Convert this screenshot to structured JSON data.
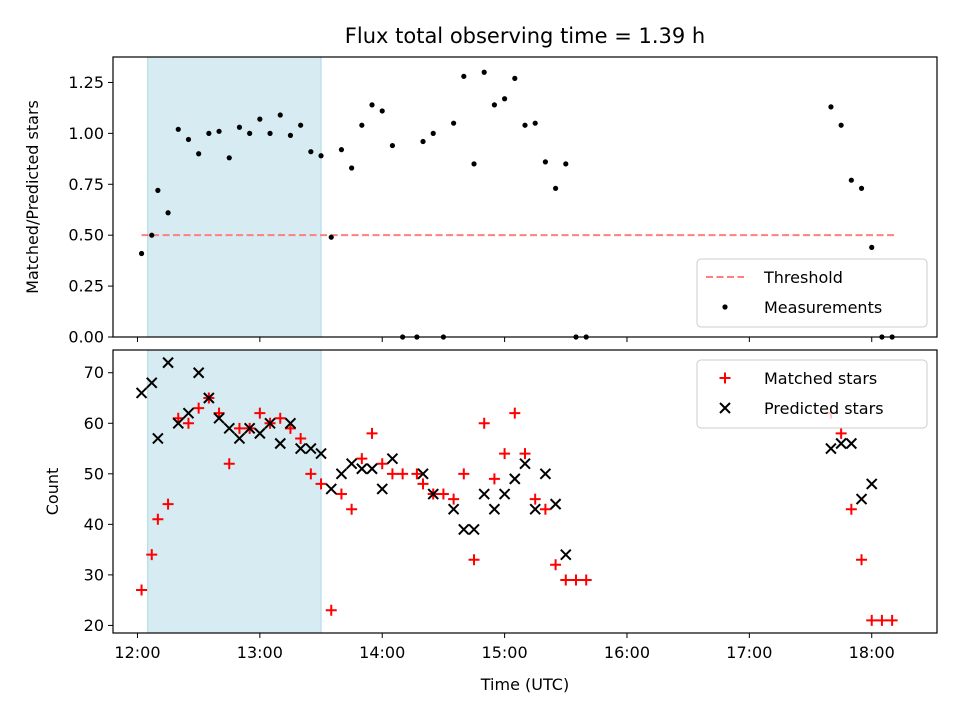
{
  "chart_data": [
    {
      "type": "scatter",
      "title": "Flux total observing time = 1.39 h",
      "xlabel": "",
      "ylabel": "Matched/Predicted stars",
      "ylim": [
        0,
        1.375
      ],
      "yticks": [
        "0.00",
        "0.25",
        "0.50",
        "0.75",
        "1.00",
        "1.25"
      ],
      "ytick_values": [
        0,
        0.25,
        0.5,
        0.75,
        1.0,
        1.25
      ],
      "xlim": [
        "11:48",
        "18:32"
      ],
      "xticks": [
        "12:00",
        "13:00",
        "14:00",
        "15:00",
        "16:00",
        "17:00",
        "18:00"
      ],
      "shaded_interval": [
        "12:05",
        "13:30"
      ],
      "threshold": {
        "name": "Threshold",
        "value": 0.5,
        "x": [
          "12:02",
          "18:12"
        ],
        "color": "#ff7f7f"
      },
      "legend": {
        "placement": "lower right",
        "entries": [
          "Threshold",
          "Measurements"
        ]
      },
      "series": [
        {
          "name": "Measurements",
          "color": "#000000",
          "points": [
            [
              "12:02",
              0.41
            ],
            [
              "12:07",
              0.5
            ],
            [
              "12:10",
              0.72
            ],
            [
              "12:15",
              0.61
            ],
            [
              "12:20",
              1.02
            ],
            [
              "12:25",
              0.97
            ],
            [
              "12:30",
              0.9
            ],
            [
              "12:35",
              1.0
            ],
            [
              "12:40",
              1.01
            ],
            [
              "12:45",
              0.88
            ],
            [
              "12:50",
              1.03
            ],
            [
              "12:55",
              1.0
            ],
            [
              "13:00",
              1.07
            ],
            [
              "13:05",
              1.0
            ],
            [
              "13:10",
              1.09
            ],
            [
              "13:15",
              0.99
            ],
            [
              "13:20",
              1.04
            ],
            [
              "13:25",
              0.91
            ],
            [
              "13:30",
              0.89
            ],
            [
              "13:35",
              0.49
            ],
            [
              "13:40",
              0.92
            ],
            [
              "13:45",
              0.83
            ],
            [
              "13:50",
              1.04
            ],
            [
              "13:55",
              1.14
            ],
            [
              "14:00",
              1.11
            ],
            [
              "14:05",
              0.94
            ],
            [
              "14:10",
              0.0
            ],
            [
              "14:17",
              0.0
            ],
            [
              "14:20",
              0.96
            ],
            [
              "14:25",
              1.0
            ],
            [
              "14:30",
              0.0
            ],
            [
              "14:35",
              1.05
            ],
            [
              "14:40",
              1.28
            ],
            [
              "14:45",
              0.85
            ],
            [
              "14:50",
              1.3
            ],
            [
              "14:55",
              1.14
            ],
            [
              "15:00",
              1.17
            ],
            [
              "15:05",
              1.27
            ],
            [
              "15:10",
              1.04
            ],
            [
              "15:15",
              1.05
            ],
            [
              "15:20",
              0.86
            ],
            [
              "15:25",
              0.73
            ],
            [
              "15:30",
              0.85
            ],
            [
              "15:35",
              0.0
            ],
            [
              "15:40",
              0.0
            ],
            [
              "17:40",
              1.13
            ],
            [
              "17:45",
              1.04
            ],
            [
              "17:50",
              0.77
            ],
            [
              "17:55",
              0.73
            ],
            [
              "18:00",
              0.44
            ],
            [
              "18:05",
              0.0
            ],
            [
              "18:10",
              0.0
            ]
          ]
        }
      ]
    },
    {
      "type": "scatter",
      "title": "",
      "xlabel": "Time (UTC)",
      "ylabel": "Count",
      "ylim": [
        18.5,
        74.5
      ],
      "yticks": [
        "20",
        "30",
        "40",
        "50",
        "60",
        "70"
      ],
      "ytick_values": [
        20,
        30,
        40,
        50,
        60,
        70
      ],
      "xlim": [
        "11:48",
        "18:32"
      ],
      "xticks": [
        "12:00",
        "13:00",
        "14:00",
        "15:00",
        "16:00",
        "17:00",
        "18:00"
      ],
      "shaded_interval": [
        "12:05",
        "13:30"
      ],
      "legend": {
        "placement": "upper right",
        "entries": [
          "Matched stars",
          "Predicted stars"
        ]
      },
      "series": [
        {
          "name": "Matched stars",
          "marker": "+",
          "color": "#ff0000",
          "points": [
            [
              "12:02",
              27
            ],
            [
              "12:07",
              34
            ],
            [
              "12:10",
              41
            ],
            [
              "12:15",
              44
            ],
            [
              "12:20",
              61
            ],
            [
              "12:25",
              60
            ],
            [
              "12:30",
              63
            ],
            [
              "12:35",
              65
            ],
            [
              "12:40",
              62
            ],
            [
              "12:45",
              52
            ],
            [
              "12:50",
              59
            ],
            [
              "12:55",
              59
            ],
            [
              "13:00",
              62
            ],
            [
              "13:05",
              60
            ],
            [
              "13:10",
              61
            ],
            [
              "13:15",
              59
            ],
            [
              "13:20",
              57
            ],
            [
              "13:25",
              50
            ],
            [
              "13:30",
              48
            ],
            [
              "13:35",
              23
            ],
            [
              "13:40",
              46
            ],
            [
              "13:45",
              43
            ],
            [
              "13:50",
              53
            ],
            [
              "13:55",
              58
            ],
            [
              "14:00",
              52
            ],
            [
              "14:05",
              50
            ],
            [
              "14:10",
              50
            ],
            [
              "14:17",
              50
            ],
            [
              "14:20",
              48
            ],
            [
              "14:25",
              46
            ],
            [
              "14:30",
              46
            ],
            [
              "14:35",
              45
            ],
            [
              "14:40",
              50
            ],
            [
              "14:45",
              33
            ],
            [
              "14:50",
              60
            ],
            [
              "14:55",
              49
            ],
            [
              "15:00",
              54
            ],
            [
              "15:05",
              62
            ],
            [
              "15:10",
              54
            ],
            [
              "15:15",
              45
            ],
            [
              "15:20",
              43
            ],
            [
              "15:25",
              32
            ],
            [
              "15:30",
              29
            ],
            [
              "15:35",
              29
            ],
            [
              "15:40",
              29
            ],
            [
              "17:40",
              62
            ],
            [
              "17:45",
              58
            ],
            [
              "17:50",
              43
            ],
            [
              "17:55",
              33
            ],
            [
              "18:00",
              21
            ],
            [
              "18:05",
              21
            ],
            [
              "18:10",
              21
            ]
          ]
        },
        {
          "name": "Predicted stars",
          "marker": "x",
          "color": "#000000",
          "points": [
            [
              "12:02",
              66
            ],
            [
              "12:07",
              68
            ],
            [
              "12:10",
              57
            ],
            [
              "12:15",
              72
            ],
            [
              "12:20",
              60
            ],
            [
              "12:25",
              62
            ],
            [
              "12:30",
              70
            ],
            [
              "12:35",
              65
            ],
            [
              "12:40",
              61
            ],
            [
              "12:45",
              59
            ],
            [
              "12:50",
              57
            ],
            [
              "12:55",
              59
            ],
            [
              "13:00",
              58
            ],
            [
              "13:05",
              60
            ],
            [
              "13:10",
              56
            ],
            [
              "13:15",
              60
            ],
            [
              "13:20",
              55
            ],
            [
              "13:25",
              55
            ],
            [
              "13:30",
              54
            ],
            [
              "13:35",
              47
            ],
            [
              "13:40",
              50
            ],
            [
              "13:45",
              52
            ],
            [
              "13:50",
              51
            ],
            [
              "13:55",
              51
            ],
            [
              "14:00",
              47
            ],
            [
              "14:05",
              53
            ],
            [
              "14:20",
              50
            ],
            [
              "14:25",
              46
            ],
            [
              "14:35",
              43
            ],
            [
              "14:40",
              39
            ],
            [
              "14:45",
              39
            ],
            [
              "14:50",
              46
            ],
            [
              "14:55",
              43
            ],
            [
              "15:00",
              46
            ],
            [
              "15:05",
              49
            ],
            [
              "15:10",
              52
            ],
            [
              "15:15",
              43
            ],
            [
              "15:20",
              50
            ],
            [
              "15:25",
              44
            ],
            [
              "15:30",
              34
            ],
            [
              "17:40",
              55
            ],
            [
              "17:45",
              56
            ],
            [
              "17:50",
              56
            ],
            [
              "17:55",
              45
            ],
            [
              "18:00",
              48
            ]
          ]
        }
      ]
    }
  ]
}
